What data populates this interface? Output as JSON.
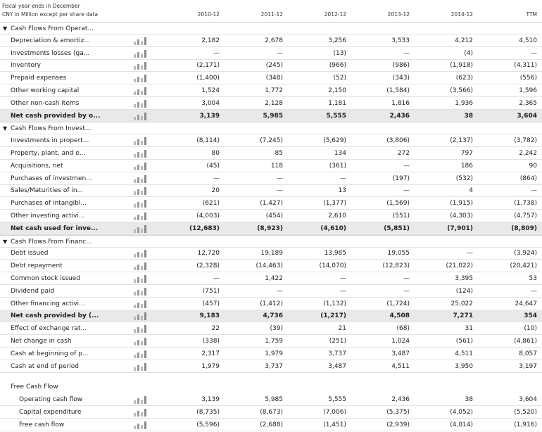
{
  "header": {
    "fiscal_note": "Fiscal year ends in December",
    "units_note": "CNY in Million except per share data",
    "columns": [
      "2010-12",
      "2011-12",
      "2012-12",
      "2013-12",
      "2014-12",
      "TTM"
    ]
  },
  "sections": [
    {
      "title": "Cash Flows From Operat...",
      "rows": [
        {
          "label": "Depreciation & amortiz...",
          "values": [
            "2,182",
            "2,678",
            "3,256",
            "3,533",
            "4,212",
            "4,510"
          ]
        },
        {
          "label": "Investments losses (ga...",
          "values": [
            "—",
            "—",
            "(13)",
            "—",
            "(4)",
            "—"
          ]
        },
        {
          "label": "Inventory",
          "values": [
            "(2,171)",
            "(245)",
            "(966)",
            "(986)",
            "(1,918)",
            "(4,311)"
          ]
        },
        {
          "label": "Prepaid expenses",
          "values": [
            "(1,400)",
            "(348)",
            "(52)",
            "(343)",
            "(623)",
            "(556)"
          ]
        },
        {
          "label": "Other working capital",
          "values": [
            "1,524",
            "1,772",
            "2,150",
            "(1,584)",
            "(3,566)",
            "1,596"
          ]
        },
        {
          "label": "Other non-cash items",
          "values": [
            "3,004",
            "2,128",
            "1,181",
            "1,816",
            "1,936",
            "2,365"
          ]
        }
      ],
      "total": {
        "label": "Net cash provided by o...",
        "values": [
          "3,139",
          "5,985",
          "5,555",
          "2,436",
          "38",
          "3,604"
        ]
      }
    },
    {
      "title": "Cash Flows From Invest...",
      "rows": [
        {
          "label": "Investments in propert...",
          "values": [
            "(8,114)",
            "(7,245)",
            "(5,629)",
            "(3,806)",
            "(2,137)",
            "(3,782)"
          ]
        },
        {
          "label": "Property, plant, and e...",
          "values": [
            "80",
            "85",
            "134",
            "272",
            "797",
            "2,242"
          ]
        },
        {
          "label": "Acquisitions, net",
          "values": [
            "(45)",
            "118",
            "(361)",
            "—",
            "186",
            "90"
          ]
        },
        {
          "label": "Purchases of investmen...",
          "values": [
            "—",
            "—",
            "—",
            "(197)",
            "(532)",
            "(864)"
          ]
        },
        {
          "label": "Sales/Maturities of in...",
          "values": [
            "20",
            "—",
            "13",
            "—",
            "4",
            "—"
          ]
        },
        {
          "label": "Purchases of intangibl...",
          "values": [
            "(621)",
            "(1,427)",
            "(1,377)",
            "(1,569)",
            "(1,915)",
            "(1,738)"
          ]
        },
        {
          "label": "Other investing activi...",
          "values": [
            "(4,003)",
            "(454)",
            "2,610",
            "(551)",
            "(4,303)",
            "(4,757)"
          ]
        }
      ],
      "total": {
        "label": "Net cash used for inve...",
        "values": [
          "(12,683)",
          "(8,923)",
          "(4,610)",
          "(5,851)",
          "(7,901)",
          "(8,809)"
        ]
      }
    },
    {
      "title": "Cash Flows From Financ...",
      "rows": [
        {
          "label": "Debt issued",
          "values": [
            "12,720",
            "19,189",
            "13,985",
            "19,055",
            "—",
            "(3,924)"
          ]
        },
        {
          "label": "Debt repayment",
          "values": [
            "(2,328)",
            "(14,463)",
            "(14,070)",
            "(12,823)",
            "(21,022)",
            "(20,421)"
          ]
        },
        {
          "label": "Common stock issued",
          "values": [
            "—",
            "1,422",
            "—",
            "—",
            "3,395",
            "53"
          ]
        },
        {
          "label": "Dividend paid",
          "values": [
            "(751)",
            "—",
            "—",
            "—",
            "(124)",
            "—"
          ]
        },
        {
          "label": "Other financing activi...",
          "values": [
            "(457)",
            "(1,412)",
            "(1,132)",
            "(1,724)",
            "25,022",
            "24,647"
          ]
        }
      ],
      "total": {
        "label": "Net cash provided by (...",
        "values": [
          "9,183",
          "4,736",
          "(1,217)",
          "4,508",
          "7,271",
          "354"
        ]
      }
    }
  ],
  "other_rows": [
    {
      "label": "Effect of exchange rat...",
      "values": [
        "22",
        "(39)",
        "21",
        "(68)",
        "31",
        "(10)"
      ]
    },
    {
      "label": "Net change in cash",
      "values": [
        "(338)",
        "1,759",
        "(251)",
        "1,024",
        "(561)",
        "(4,861)"
      ]
    },
    {
      "label": "Cash at beginning of p...",
      "values": [
        "2,317",
        "1,979",
        "3,737",
        "3,487",
        "4,511",
        "8,057"
      ]
    },
    {
      "label": "Cash at end of period",
      "values": [
        "1,979",
        "3,737",
        "3,487",
        "4,511",
        "3,950",
        "3,197"
      ]
    }
  ],
  "free_cash_flow": {
    "title": "Free Cash Flow",
    "rows": [
      {
        "label": "Operating cash flow",
        "values": [
          "3,139",
          "5,985",
          "5,555",
          "2,436",
          "38",
          "3,604"
        ]
      },
      {
        "label": "Capital expenditure",
        "values": [
          "(8,735)",
          "(8,673)",
          "(7,006)",
          "(5,375)",
          "(4,052)",
          "(5,520)"
        ]
      },
      {
        "label": "Free cash flow",
        "values": [
          "(5,596)",
          "(2,688)",
          "(1,451)",
          "(2,939)",
          "(4,014)",
          "(1,916)"
        ]
      }
    ]
  }
}
